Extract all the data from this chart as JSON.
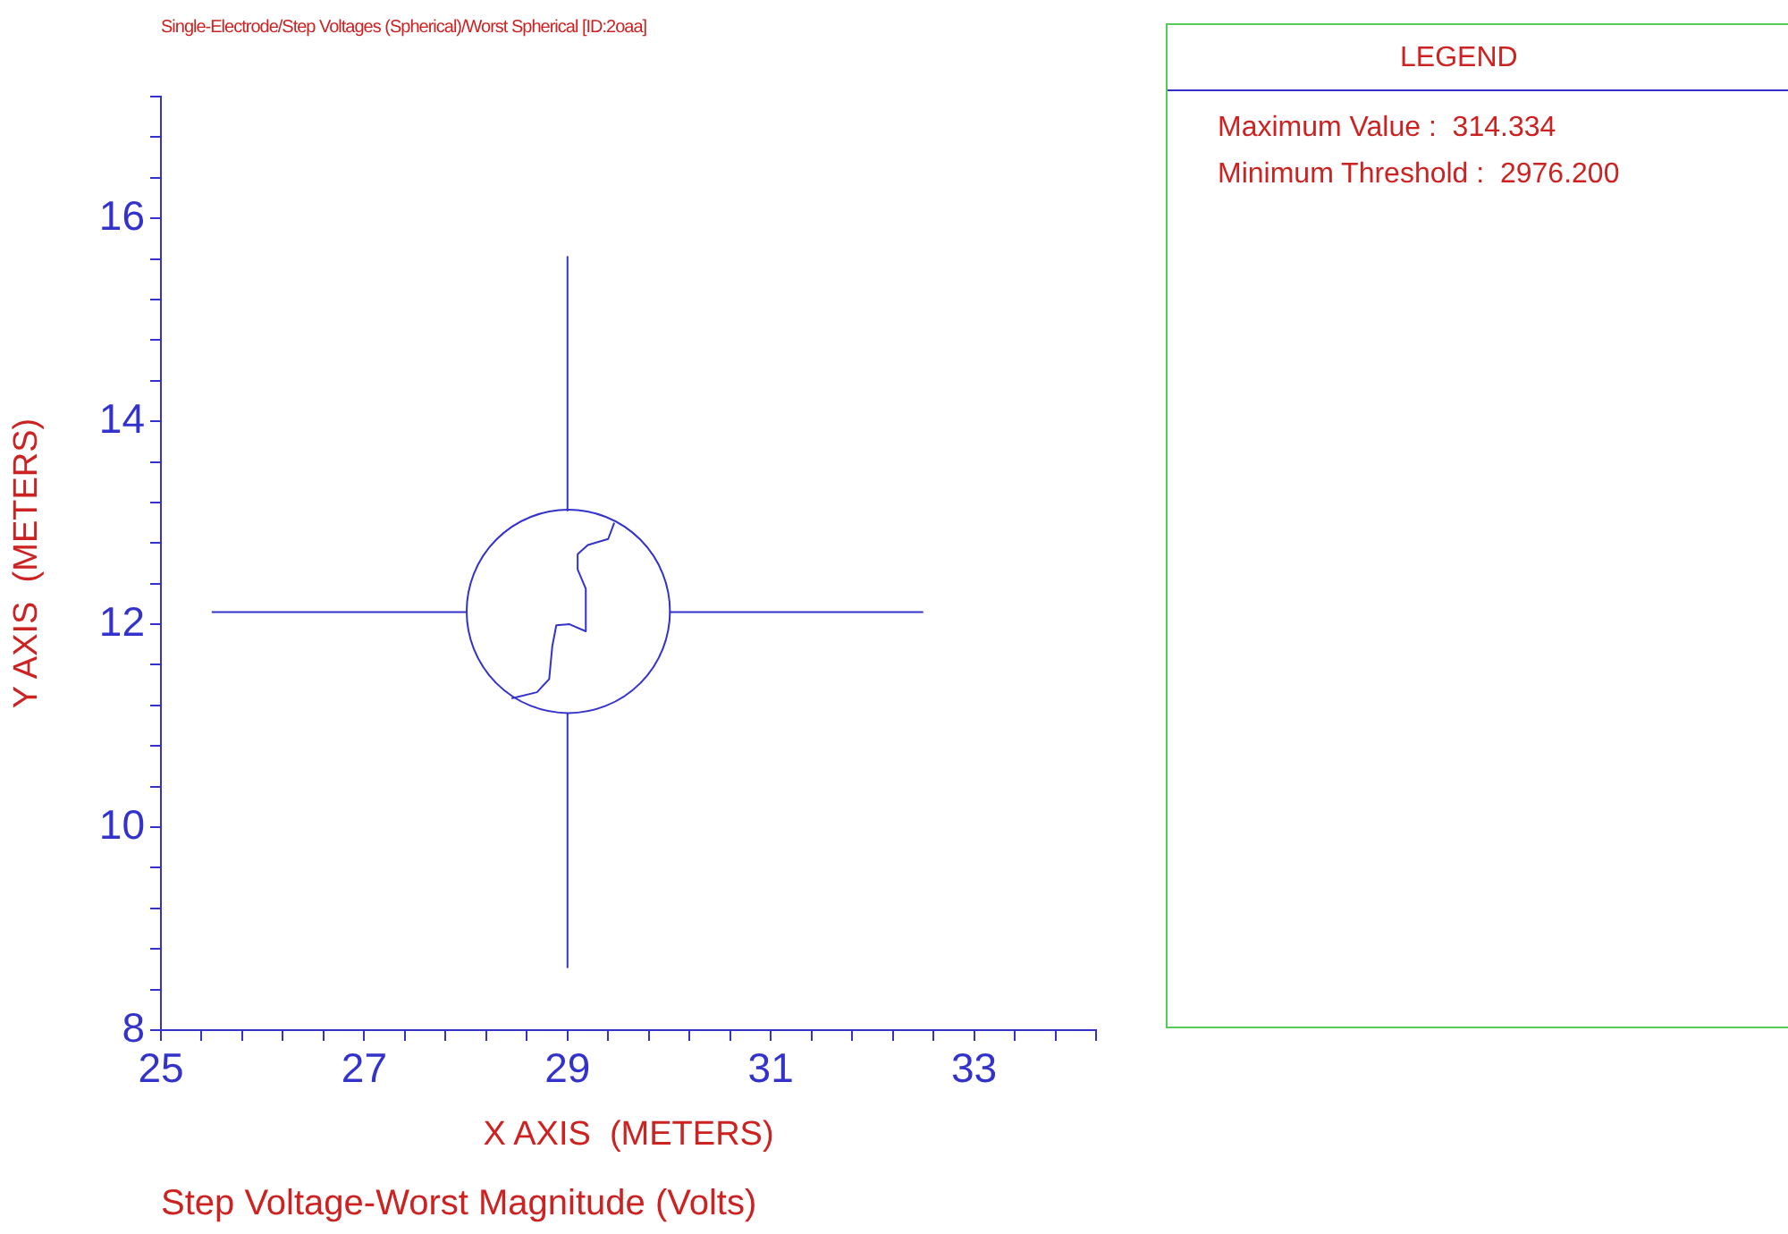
{
  "chart_data": {
    "type": "line",
    "title": "Single-Electrode/Step Voltages (Spherical)/Worst Spherical [ID:2oaa]",
    "xlabel": "X AXIS  (METERS)",
    "ylabel": "Y AXIS  (METERS)",
    "legend_title": "LEGEND",
    "annotations": [
      "Maximum Value :  314.334",
      "Minimum Threshold :  2976.200",
      "Step Voltage-Worst Magnitude (Volts)"
    ],
    "marker": "none",
    "xlim": [
      25,
      34.2
    ],
    "ylim": [
      8,
      17.2
    ],
    "xticks": [
      25,
      {
        "value": 25.4,
        "label": null
      },
      {
        "value": 25.8,
        "label": null
      },
      {
        "value": 26.2,
        "label": null
      },
      {
        "value": 26.6,
        "label": null
      },
      27,
      {
        "value": 27.4,
        "label": null
      },
      {
        "value": 27.8,
        "label": null
      },
      {
        "value": 28.2,
        "label": null
      },
      {
        "value": 28.6,
        "label": null
      },
      29,
      {
        "value": 29.4,
        "label": null
      },
      {
        "value": 29.8,
        "label": null
      },
      {
        "value": 30.2,
        "label": null
      },
      {
        "value": 30.6,
        "label": null
      },
      31,
      {
        "value": 31.4,
        "label": null
      },
      {
        "value": 31.8,
        "label": null
      },
      {
        "value": 32.2,
        "label": null
      },
      {
        "value": 32.6,
        "label": null
      },
      33,
      {
        "value": 33.4,
        "label": null
      },
      {
        "value": 33.8,
        "label": null
      },
      {
        "value": 34.2,
        "label": null
      }
    ],
    "yticks": [
      8,
      {
        "value": 8.4,
        "label": null
      },
      {
        "value": 8.8,
        "label": null
      },
      {
        "value": 9.2,
        "label": null
      },
      {
        "value": 9.6,
        "label": null
      },
      10,
      {
        "value": 10.4,
        "label": null
      },
      {
        "value": 10.8,
        "label": null
      },
      {
        "value": 11.2,
        "label": null
      },
      {
        "value": 11.6,
        "label": null
      },
      12,
      {
        "value": 12.4,
        "label": null
      },
      {
        "value": 12.8,
        "label": null
      },
      {
        "value": 13.2,
        "label": null
      },
      {
        "value": 13.6,
        "label": null
      },
      14,
      {
        "value": 14.4,
        "label": null
      },
      {
        "value": 14.8,
        "label": null
      },
      {
        "value": 15.2,
        "label": null
      },
      {
        "value": 15.6,
        "label": null
      },
      16,
      {
        "value": 16.4,
        "label": null
      },
      {
        "value": 16.8,
        "label": null
      },
      {
        "value": 17.2,
        "label": null
      }
    ],
    "series": [
      {
        "color": "#3333cc",
        "x": [
          25.5,
          28
        ],
        "values": [
          12.12,
          12.12
        ]
      },
      {
        "color": "#3333cc",
        "x": [
          30,
          32.5
        ],
        "values": [
          12.12,
          12.12
        ]
      },
      {
        "color": "#3333cc",
        "x": [
          29,
          29
        ],
        "values": [
          15.62,
          13.12
        ]
      },
      {
        "color": "#3333cc",
        "x": [
          29,
          29
        ],
        "values": [
          11.12,
          8.62
        ]
      },
      {
        "color": "#3333cc",
        "x": [
          28.45,
          28.7,
          28.82,
          28.85,
          28.89,
          29.02,
          29.18
        ],
        "values": [
          11.27,
          11.33,
          11.46,
          11.78,
          11.99,
          12.0,
          11.93
        ]
      },
      {
        "color": "#3333cc",
        "x": [
          29.1,
          29.1,
          29.18,
          29.18
        ],
        "values": [
          12.69,
          12.54,
          12.35,
          11.93
        ]
      },
      {
        "color": "#3333cc",
        "x": [
          29.1,
          29.2,
          29.4,
          29.46
        ],
        "values": [
          12.69,
          12.78,
          12.84,
          13.0
        ]
      }
    ]
  }
}
